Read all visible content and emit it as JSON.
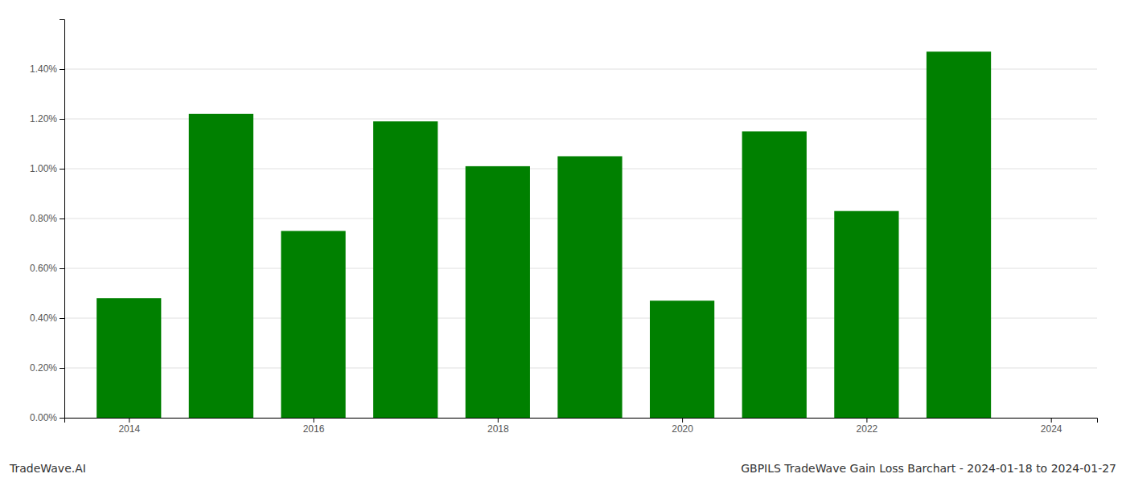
{
  "chart_data": {
    "type": "bar",
    "title": "GBPILS TradeWave Gain Loss Barchart - 2024-01-18 to 2024-01-27",
    "annotations": [
      "TradeWave.AI"
    ],
    "x": [
      2014,
      2015,
      2016,
      2017,
      2018,
      2019,
      2020,
      2021,
      2022,
      2023
    ],
    "values": [
      0.0048,
      0.0122,
      0.0075,
      0.0119,
      0.0101,
      0.0105,
      0.0047,
      0.0115,
      0.0083,
      0.0147
    ],
    "color": "#008000",
    "xlim": [
      2013.3,
      2024.5
    ],
    "xticks": [
      2014,
      2016,
      2018,
      2020,
      2022,
      2024
    ],
    "ylim": [
      0,
      0.016
    ],
    "yticks": [
      {
        "value": 0.0,
        "label": "0.00%"
      },
      {
        "value": 0.002,
        "label": "0.20%"
      },
      {
        "value": 0.004,
        "label": "0.40%"
      },
      {
        "value": 0.006,
        "label": "0.60%"
      },
      {
        "value": 0.008,
        "label": "0.80%"
      },
      {
        "value": 0.01,
        "label": "1.00%"
      },
      {
        "value": 0.012,
        "label": "1.20%"
      },
      {
        "value": 0.014,
        "label": "1.40%"
      }
    ],
    "grid": true
  }
}
